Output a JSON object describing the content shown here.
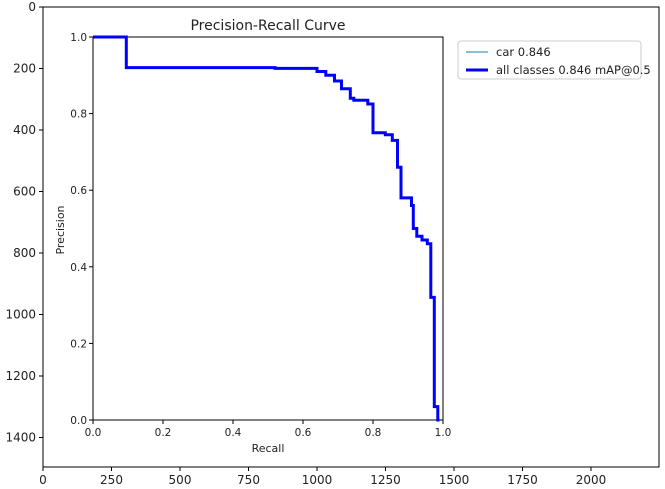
{
  "outer_axes": {
    "x_ticks": [
      "0",
      "250",
      "500",
      "750",
      "1000",
      "1250",
      "1500",
      "1750",
      "2000"
    ],
    "y_ticks": [
      "0",
      "200",
      "400",
      "600",
      "800",
      "1000",
      "1200",
      "1400"
    ]
  },
  "chart_data": {
    "type": "line",
    "title": "Precision-Recall Curve",
    "xlabel": "Recall",
    "ylabel": "Precision",
    "xlim": [
      0,
      1
    ],
    "ylim": [
      0,
      1
    ],
    "x_ticks": [
      "0.0",
      "0.2",
      "0.4",
      "0.6",
      "0.8",
      "1.0"
    ],
    "y_ticks": [
      "0.0",
      "0.2",
      "0.4",
      "0.6",
      "0.8",
      "1.0"
    ],
    "grid": false,
    "legend_position": "outside-right-top",
    "series": [
      {
        "name": "car 0.846",
        "color": "#1f77b4",
        "x": [
          0,
          0.095,
          0.095,
          0.52,
          0.52,
          0.64,
          0.64,
          0.665,
          0.665,
          0.69,
          0.69,
          0.71,
          0.71,
          0.735,
          0.735,
          0.745,
          0.745,
          0.785,
          0.785,
          0.8,
          0.8,
          0.835,
          0.835,
          0.855,
          0.855,
          0.87,
          0.87,
          0.88,
          0.88,
          0.91,
          0.91,
          0.915,
          0.915,
          0.925,
          0.925,
          0.94,
          0.94,
          0.955,
          0.955,
          0.965,
          0.965,
          0.975,
          0.975,
          0.985,
          0.985,
          0.99
        ],
        "y": [
          1.0,
          1.0,
          0.92,
          0.92,
          0.918,
          0.918,
          0.91,
          0.91,
          0.9,
          0.9,
          0.885,
          0.885,
          0.865,
          0.865,
          0.84,
          0.84,
          0.835,
          0.835,
          0.825,
          0.825,
          0.75,
          0.75,
          0.745,
          0.745,
          0.73,
          0.73,
          0.66,
          0.66,
          0.58,
          0.58,
          0.56,
          0.56,
          0.5,
          0.5,
          0.48,
          0.48,
          0.47,
          0.47,
          0.46,
          0.46,
          0.32,
          0.32,
          0.035,
          0.035,
          0.0,
          0.0
        ]
      },
      {
        "name": "all classes 0.846 mAP@0.5",
        "color": "#0000ff",
        "x": [
          0,
          0.095,
          0.095,
          0.52,
          0.52,
          0.64,
          0.64,
          0.665,
          0.665,
          0.69,
          0.69,
          0.71,
          0.71,
          0.735,
          0.735,
          0.745,
          0.745,
          0.785,
          0.785,
          0.8,
          0.8,
          0.835,
          0.835,
          0.855,
          0.855,
          0.87,
          0.87,
          0.88,
          0.88,
          0.91,
          0.91,
          0.915,
          0.915,
          0.925,
          0.925,
          0.94,
          0.94,
          0.955,
          0.955,
          0.965,
          0.965,
          0.975,
          0.975,
          0.985,
          0.985,
          0.99
        ],
        "y": [
          1.0,
          1.0,
          0.92,
          0.92,
          0.918,
          0.918,
          0.91,
          0.91,
          0.9,
          0.9,
          0.885,
          0.885,
          0.865,
          0.865,
          0.84,
          0.84,
          0.835,
          0.835,
          0.825,
          0.825,
          0.75,
          0.75,
          0.745,
          0.745,
          0.73,
          0.73,
          0.66,
          0.66,
          0.58,
          0.58,
          0.56,
          0.56,
          0.5,
          0.5,
          0.48,
          0.48,
          0.47,
          0.47,
          0.46,
          0.46,
          0.32,
          0.32,
          0.035,
          0.035,
          0.0,
          0.0
        ]
      }
    ]
  }
}
